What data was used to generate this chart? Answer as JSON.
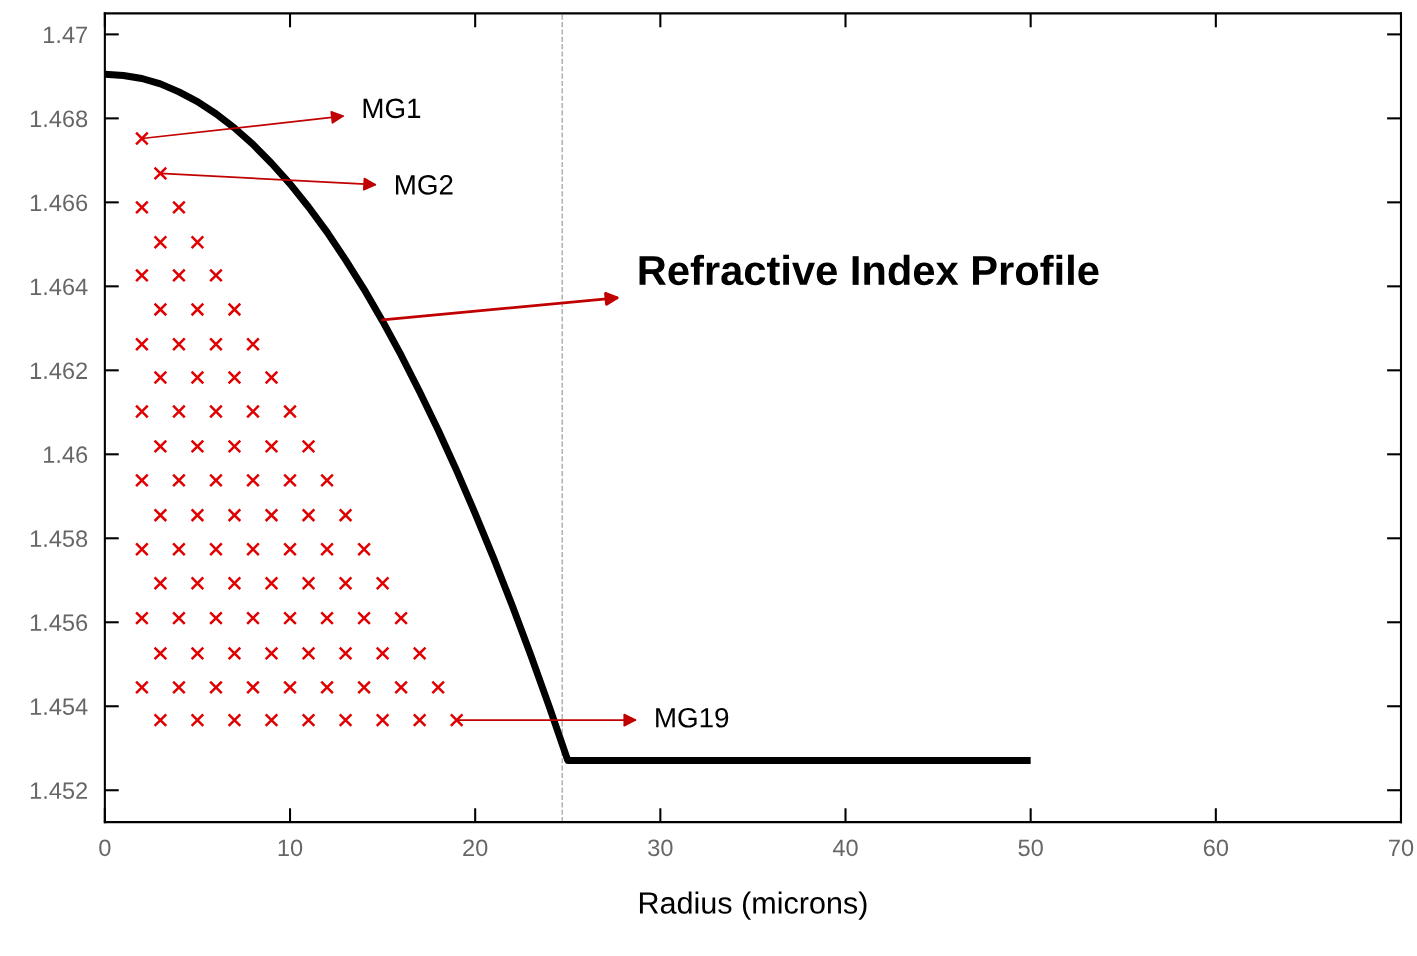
{
  "chart_data": {
    "type": "scatter",
    "xlabel": "Radius (microns)",
    "xlim": [
      0,
      70
    ],
    "xticks": [
      0,
      10,
      20,
      30,
      40,
      50,
      60,
      70
    ],
    "ylim": [
      1.45124,
      1.4705
    ],
    "yticks": [
      1.452,
      1.454,
      1.456,
      1.458,
      1.46,
      1.462,
      1.464,
      1.466,
      1.468,
      1.47
    ],
    "grid": false,
    "legend": false,
    "series": [
      {
        "type": "line",
        "color": "#000000",
        "line_style": "solid",
        "marker": "none",
        "x": [
          0,
          1,
          2,
          3,
          4,
          5,
          6,
          7,
          8,
          9,
          10,
          11,
          12,
          13,
          14,
          15,
          16,
          17,
          18,
          19,
          20,
          21,
          22,
          23,
          24,
          25,
          30,
          35,
          40,
          45,
          50
        ],
        "values": [
          1.46905,
          1.46902,
          1.46895,
          1.46882,
          1.46863,
          1.4684,
          1.46811,
          1.46777,
          1.46738,
          1.46693,
          1.46644,
          1.46589,
          1.46529,
          1.46463,
          1.46393,
          1.46317,
          1.46236,
          1.46149,
          1.46058,
          1.45961,
          1.45859,
          1.45752,
          1.4564,
          1.45522,
          1.45399,
          1.45271,
          1.45271,
          1.45271,
          1.45271,
          1.45271,
          1.45271
        ]
      },
      {
        "color": "#e00000",
        "marker": "cross",
        "x": [
          2,
          3,
          2,
          4,
          3,
          5,
          2,
          4,
          6,
          3,
          5,
          7,
          2,
          4,
          6,
          8,
          3,
          5,
          7,
          9,
          2,
          4,
          6,
          8,
          10,
          3,
          5,
          7,
          9,
          11,
          2,
          4,
          6,
          8,
          10,
          12,
          3,
          5,
          7,
          9,
          11,
          13,
          2,
          4,
          6,
          8,
          10,
          12,
          14,
          3,
          5,
          7,
          9,
          11,
          13,
          15,
          2,
          4,
          6,
          8,
          10,
          12,
          14,
          16,
          3,
          5,
          7,
          9,
          11,
          13,
          15,
          17,
          2,
          4,
          6,
          8,
          10,
          12,
          14,
          16,
          18,
          3,
          5,
          7,
          9,
          11,
          13,
          15,
          17,
          19
        ],
        "values": [
          1.46752,
          1.46669,
          1.46588,
          1.46588,
          1.46505,
          1.46505,
          1.46426,
          1.46426,
          1.46426,
          1.46345,
          1.46345,
          1.46345,
          1.46262,
          1.46262,
          1.46262,
          1.46262,
          1.46183,
          1.46183,
          1.46183,
          1.46183,
          1.46102,
          1.46102,
          1.46102,
          1.46102,
          1.46102,
          1.46019,
          1.46019,
          1.46019,
          1.46019,
          1.46019,
          1.45938,
          1.45938,
          1.45938,
          1.45938,
          1.45938,
          1.45938,
          1.45855,
          1.45855,
          1.45855,
          1.45855,
          1.45855,
          1.45855,
          1.45774,
          1.45774,
          1.45774,
          1.45774,
          1.45774,
          1.45774,
          1.45774,
          1.45693,
          1.45693,
          1.45693,
          1.45693,
          1.45693,
          1.45693,
          1.45693,
          1.4561,
          1.4561,
          1.4561,
          1.4561,
          1.4561,
          1.4561,
          1.4561,
          1.4561,
          1.45526,
          1.45526,
          1.45526,
          1.45526,
          1.45526,
          1.45526,
          1.45526,
          1.45526,
          1.45445,
          1.45445,
          1.45445,
          1.45445,
          1.45445,
          1.45445,
          1.45445,
          1.45445,
          1.45445,
          1.45367,
          1.45367,
          1.45367,
          1.45367,
          1.45367,
          1.45367,
          1.45367,
          1.45367,
          1.45367
        ]
      }
    ],
    "ref_lines": [
      {
        "axis": "x",
        "value": 24.7,
        "color": "#aaaaaa",
        "line_style": "dashed"
      }
    ],
    "annotations": [
      {
        "text": "MG1",
        "x": 2,
        "y": 1.46752
      },
      {
        "text": "MG2",
        "x": 3,
        "y": 1.46669
      },
      {
        "text": "Refractive Index Profile",
        "x": 15,
        "y": 1.4632
      },
      {
        "text": "MG19",
        "x": 19,
        "y": 1.45367
      }
    ]
  }
}
